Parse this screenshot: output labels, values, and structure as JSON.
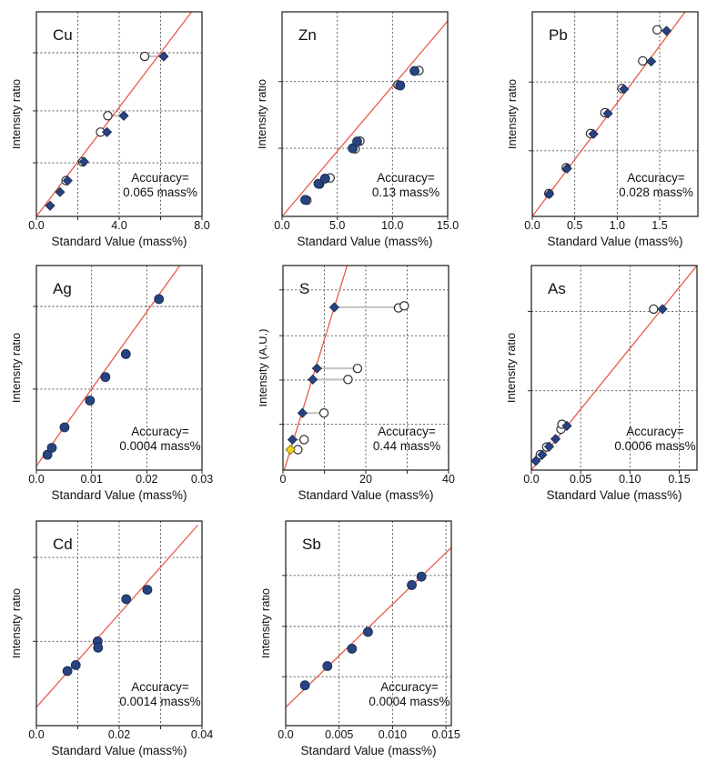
{
  "figure": {
    "description": "Calibration curves of eight elements: intensity ratio vs standard value",
    "background": "#ffffff"
  },
  "styles": {
    "line_color": "#e85c48",
    "marker_fill": "#28437f",
    "marker_stroke": "#16294f",
    "yellow_fill": "#f4d418",
    "yellow_stroke": "#6f6407",
    "open_fill": "#ffffff",
    "open_stroke": "#2e2e2e",
    "grid_color": "#4a4a4a",
    "connector_color": "#c2c2c2",
    "box_color": "#2b2b2b",
    "text_color": "#111111"
  },
  "chart_data": [
    {
      "id": "cu",
      "type": "scatter",
      "title": "Cu",
      "xlabel": "Standard Value (mass%)",
      "ylabel": "Intensity ratio",
      "accuracy_label": "Accuracy=",
      "accuracy_value": "0.065 mass%",
      "xlim": [
        0,
        8
      ],
      "ylim": [
        0,
        1
      ],
      "y_units": "normalized (y axis unlabeled)",
      "x_ticks": [
        {
          "v": 0,
          "label": "0.0"
        },
        {
          "v": 2,
          "label": ""
        },
        {
          "v": 4,
          "label": "4.0"
        },
        {
          "v": 6,
          "label": ""
        },
        {
          "v": 8,
          "label": "8.0"
        }
      ],
      "grid_x": [
        2,
        4,
        6
      ],
      "grid_y": [
        0.262,
        0.516,
        0.8
      ],
      "fit_line": {
        "x1": 0,
        "y1": 0,
        "x2": 7.5,
        "y2": 1.0
      },
      "connectors": [
        [
          3.1,
          3.41,
          0.412
        ],
        [
          3.45,
          4.22,
          0.492
        ],
        [
          5.23,
          6.15,
          0.782
        ]
      ],
      "series": [
        {
          "name": "reference",
          "marker": "open-circle",
          "points": [
            [
              1.43,
              0.175
            ],
            [
              2.24,
              0.267
            ],
            [
              3.1,
              0.412
            ],
            [
              3.45,
              0.492
            ],
            [
              5.23,
              0.782
            ]
          ]
        },
        {
          "name": "measured",
          "marker": "diamond",
          "color": "#28437f",
          "points": [
            [
              0.66,
              0.052
            ],
            [
              1.14,
              0.119
            ],
            [
              1.51,
              0.175
            ],
            [
              2.3,
              0.267
            ],
            [
              3.41,
              0.412
            ],
            [
              4.22,
              0.492
            ],
            [
              6.15,
              0.782
            ]
          ]
        }
      ]
    },
    {
      "id": "zn",
      "type": "scatter",
      "title": "Zn",
      "xlabel": "Standard Value (mass%)",
      "ylabel": "Intensity ratio",
      "accuracy_label": "Accuracy=",
      "accuracy_value": "0.13 mass%",
      "xlim": [
        0,
        15
      ],
      "ylim": [
        0,
        1
      ],
      "y_units": "normalized (y axis unlabeled)",
      "x_ticks": [
        {
          "v": 0,
          "label": "0.0"
        },
        {
          "v": 5,
          "label": "5.0"
        },
        {
          "v": 10,
          "label": "10.0"
        },
        {
          "v": 15,
          "label": "15.0"
        }
      ],
      "grid_x": [
        5,
        10
      ],
      "grid_y": [
        0.333,
        0.659
      ],
      "fit_line": {
        "x1": 0,
        "y1": 0,
        "x2": 15,
        "y2": 0.955
      },
      "connectors": [],
      "series": [
        {
          "name": "reference",
          "marker": "open-circle",
          "points": [
            [
              2.25,
              0.079
            ],
            [
              3.4,
              0.158
            ],
            [
              4.35,
              0.188
            ],
            [
              6.62,
              0.33
            ],
            [
              7.05,
              0.368
            ],
            [
              10.5,
              0.643
            ],
            [
              12.4,
              0.713
            ]
          ]
        },
        {
          "name": "measured",
          "marker": "circle",
          "color": "#28437f",
          "points": [
            [
              2.1,
              0.081
            ],
            [
              3.3,
              0.16
            ],
            [
              3.9,
              0.185
            ],
            [
              6.4,
              0.333
            ],
            [
              6.8,
              0.366
            ],
            [
              10.7,
              0.64
            ],
            [
              12.0,
              0.711
            ]
          ]
        }
      ]
    },
    {
      "id": "pb",
      "type": "scatter",
      "title": "Pb",
      "xlabel": "Standard Value (mass%)",
      "ylabel": "Intensity ratio",
      "accuracy_label": "Accuracy=",
      "accuracy_value": "0.028 mass%",
      "xlim": [
        0,
        1.95
      ],
      "ylim": [
        0,
        1
      ],
      "y_units": "normalized (y axis unlabeled)",
      "x_ticks": [
        {
          "v": 0,
          "label": "0.0"
        },
        {
          "v": 0.5,
          "label": "0.5"
        },
        {
          "v": 1.0,
          "label": "1.0"
        },
        {
          "v": 1.5,
          "label": "1.5"
        }
      ],
      "grid_x": [
        0.5,
        1.0,
        1.5
      ],
      "grid_y": [
        0.321,
        0.657
      ],
      "fit_line": {
        "x1": 0,
        "y1": 0,
        "x2": 1.8,
        "y2": 1.0
      },
      "connectors": [],
      "series": [
        {
          "name": "reference",
          "marker": "open-circle",
          "points": [
            [
              0.195,
              0.112
            ],
            [
              0.4,
              0.238
            ],
            [
              0.685,
              0.405
            ],
            [
              0.855,
              0.507
            ],
            [
              1.055,
              0.625
            ],
            [
              1.3,
              0.76
            ],
            [
              1.47,
              0.912
            ]
          ]
        },
        {
          "name": "measured",
          "marker": "diamond",
          "color": "#28437f",
          "points": [
            [
              0.2,
              0.109
            ],
            [
              0.41,
              0.234
            ],
            [
              0.72,
              0.403
            ],
            [
              0.89,
              0.503
            ],
            [
              1.08,
              0.622
            ],
            [
              1.4,
              0.757
            ],
            [
              1.58,
              0.907
            ]
          ]
        }
      ]
    },
    {
      "id": "ag",
      "type": "scatter",
      "title": "Ag",
      "xlabel": "Standard Value (mass%)",
      "ylabel": "Intensity ratio",
      "accuracy_label": "Accuracy=",
      "accuracy_value": "0.0004 mass%",
      "xlim": [
        0,
        0.03
      ],
      "ylim": [
        0,
        1
      ],
      "y_units": "normalized (y axis unlabeled)",
      "x_ticks": [
        {
          "v": 0,
          "label": "0.0"
        },
        {
          "v": 0.01,
          "label": "0.01"
        },
        {
          "v": 0.02,
          "label": "0.02"
        },
        {
          "v": 0.03,
          "label": "0.03"
        }
      ],
      "grid_x": [
        0.01,
        0.02
      ],
      "grid_y": [
        0.396,
        0.8
      ],
      "fit_line": {
        "x1": 0,
        "y1": 0.02,
        "x2": 0.026,
        "y2": 1.0
      },
      "connectors": [],
      "series": [
        {
          "name": "measured",
          "marker": "circle",
          "color": "#28437f",
          "points": [
            [
              0.002,
              0.075
            ],
            [
              0.0028,
              0.109
            ],
            [
              0.0051,
              0.209
            ],
            [
              0.0097,
              0.34
            ],
            [
              0.0125,
              0.455
            ],
            [
              0.0162,
              0.567
            ],
            [
              0.0222,
              0.836
            ]
          ]
        }
      ]
    },
    {
      "id": "s",
      "type": "scatter",
      "title": "S",
      "xlabel": "Standard Value (mass%)",
      "ylabel": "Intensity (A.U.)",
      "accuracy_label": "Accuracy=",
      "accuracy_value": "0.44 mass%",
      "xlim": [
        0,
        40
      ],
      "ylim": [
        0,
        1
      ],
      "y_units": "normalized",
      "x_ticks": [
        {
          "v": 0,
          "label": "0"
        },
        {
          "v": 10,
          "label": ""
        },
        {
          "v": 20,
          "label": "20"
        },
        {
          "v": 30,
          "label": ""
        },
        {
          "v": 40,
          "label": "40"
        }
      ],
      "grid_x": [
        10,
        20,
        30
      ],
      "grid_y": [
        0.224,
        0.44,
        0.657,
        0.881
      ],
      "fit_line": {
        "x1": 0.3,
        "y1": 0,
        "x2": 15.5,
        "y2": 1.0
      },
      "connectors": [
        [
          1.8,
          3.6,
          0.1
        ],
        [
          2.3,
          5.1,
          0.149
        ],
        [
          4.7,
          9.9,
          0.279
        ],
        [
          7.2,
          15.7,
          0.443
        ],
        [
          8.2,
          18.0,
          0.497
        ],
        [
          12.4,
          27.9,
          0.796
        ]
      ],
      "series": [
        {
          "name": "reference",
          "marker": "open-circle",
          "points": [
            [
              3.6,
              0.1
            ],
            [
              5.1,
              0.149
            ],
            [
              9.9,
              0.279
            ],
            [
              15.7,
              0.443
            ],
            [
              18.0,
              0.497
            ],
            [
              27.9,
              0.793
            ],
            [
              29.3,
              0.803
            ]
          ]
        },
        {
          "name": "measured",
          "marker": "diamond",
          "color": "#28437f",
          "points": [
            [
              2.3,
              0.149
            ],
            [
              4.7,
              0.279
            ],
            [
              7.2,
              0.443
            ],
            [
              8.2,
              0.497
            ],
            [
              12.4,
              0.796
            ]
          ]
        },
        {
          "name": "special",
          "marker": "diamond",
          "color": "#f4d418",
          "stroke": "#6f6407",
          "points": [
            [
              1.8,
              0.1
            ]
          ]
        }
      ]
    },
    {
      "id": "as",
      "type": "scatter",
      "title": "As",
      "xlabel": "Standard Value (mass%)",
      "ylabel": "Intensity ratio",
      "accuracy_label": "Accuracy=",
      "accuracy_value": "0.0006 mass%",
      "xlim": [
        0,
        0.168
      ],
      "ylim": [
        0,
        1
      ],
      "y_units": "normalized (y axis unlabeled)",
      "x_ticks": [
        {
          "v": 0,
          "label": "0.0"
        },
        {
          "v": 0.05,
          "label": "0.05"
        },
        {
          "v": 0.1,
          "label": "0.10"
        },
        {
          "v": 0.15,
          "label": "0.15"
        }
      ],
      "grid_x": [
        0.05,
        0.1,
        0.15
      ],
      "grid_y": [
        0.388,
        0.776
      ],
      "fit_line": {
        "x1": 0,
        "y1": 0,
        "x2": 0.168,
        "y2": 1.0
      },
      "connectors": [],
      "series": [
        {
          "name": "reference",
          "marker": "open-circle",
          "points": [
            [
              0.009,
              0.075
            ],
            [
              0.0155,
              0.113
            ],
            [
              0.03,
              0.2
            ],
            [
              0.031,
              0.224
            ],
            [
              0.124,
              0.787
            ]
          ]
        },
        {
          "name": "measured",
          "marker": "diamond",
          "color": "#28437f",
          "points": [
            [
              0.0045,
              0.045
            ],
            [
              0.011,
              0.075
            ],
            [
              0.018,
              0.115
            ],
            [
              0.0245,
              0.152
            ],
            [
              0.036,
              0.216
            ],
            [
              0.133,
              0.787
            ]
          ]
        }
      ]
    },
    {
      "id": "cd",
      "type": "scatter",
      "title": "Cd",
      "xlabel": "Standard Value (mass%)",
      "ylabel": "Intensity ratio",
      "accuracy_label": "Accuracy=",
      "accuracy_value": "0.0014 mass%",
      "xlim": [
        0,
        0.04
      ],
      "ylim": [
        0,
        1
      ],
      "y_units": "normalized (y axis unlabeled)",
      "x_ticks": [
        {
          "v": 0,
          "label": "0.0"
        },
        {
          "v": 0.01,
          "label": ""
        },
        {
          "v": 0.02,
          "label": "0.02"
        },
        {
          "v": 0.03,
          "label": ""
        },
        {
          "v": 0.04,
          "label": "0.04"
        }
      ],
      "grid_x": [
        0.01,
        0.02,
        0.03
      ],
      "grid_y": [
        0.412,
        0.822
      ],
      "fit_line": {
        "x1": 0,
        "y1": 0.09,
        "x2": 0.039,
        "y2": 0.98
      },
      "connectors": [],
      "series": [
        {
          "name": "measured",
          "marker": "circle",
          "color": "#28437f",
          "points": [
            [
              0.0075,
              0.267
            ],
            [
              0.0095,
              0.296
            ],
            [
              0.0148,
              0.412
            ],
            [
              0.0149,
              0.381
            ],
            [
              0.0217,
              0.618
            ],
            [
              0.0268,
              0.664
            ]
          ]
        }
      ]
    },
    {
      "id": "sb",
      "type": "scatter",
      "title": "Sb",
      "xlabel": "Standard Value (mass%)",
      "ylabel": "Intensity ratio",
      "accuracy_label": "Accuracy=",
      "accuracy_value": "0.0004 mass%",
      "xlim": [
        0,
        0.0155
      ],
      "ylim": [
        0,
        1
      ],
      "y_units": "normalized (y axis unlabeled)",
      "x_ticks": [
        {
          "v": 0,
          "label": "0.0"
        },
        {
          "v": 0.005,
          "label": "0.005"
        },
        {
          "v": 0.01,
          "label": "0.010"
        },
        {
          "v": 0.015,
          "label": "0.015"
        }
      ],
      "grid_x": [
        0.005,
        0.01,
        0.015
      ],
      "grid_y": [
        0.239,
        0.485,
        0.734
      ],
      "fit_line": {
        "x1": 0,
        "y1": 0.09,
        "x2": 0.0155,
        "y2": 0.87
      },
      "connectors": [],
      "series": [
        {
          "name": "measured",
          "marker": "circle",
          "color": "#28437f",
          "points": [
            [
              0.0018,
              0.197
            ],
            [
              0.0039,
              0.291
            ],
            [
              0.0062,
              0.376
            ],
            [
              0.0077,
              0.458
            ],
            [
              0.0118,
              0.687
            ],
            [
              0.0127,
              0.728
            ]
          ]
        }
      ]
    }
  ]
}
